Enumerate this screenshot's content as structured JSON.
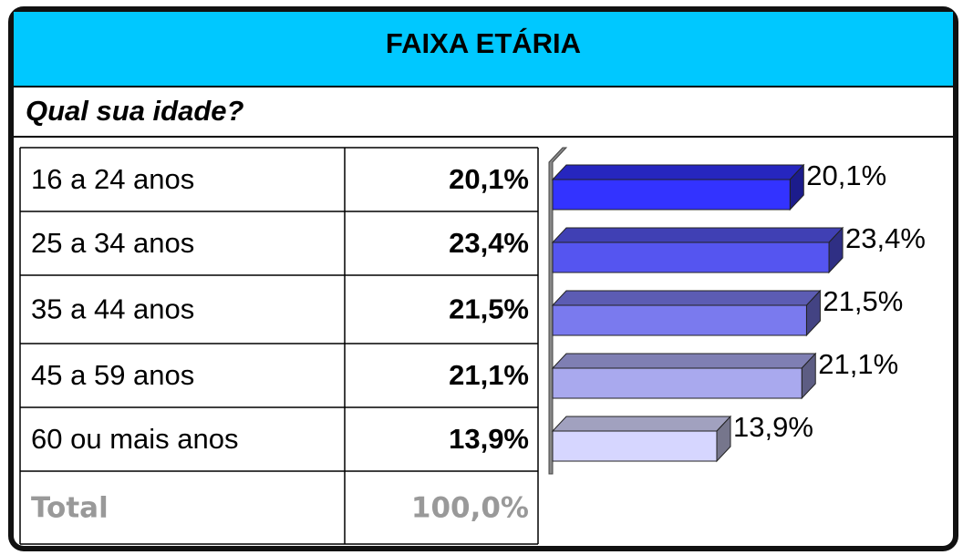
{
  "header": {
    "title": "FAIXA ETÁRIA",
    "question": "Qual sua idade?"
  },
  "table": {
    "rows": [
      [
        "16 a 24 anos",
        "20,1%"
      ],
      [
        "25 a 34 anos",
        "23,4%"
      ],
      [
        "35 a 44 anos",
        "21,5%"
      ],
      [
        "45 a 59 anos",
        "21,1%"
      ],
      [
        "60 ou mais anos",
        "13,9%"
      ]
    ],
    "total": [
      "Total",
      "100,0%"
    ]
  },
  "chart_data": {
    "type": "bar",
    "orientation": "horizontal",
    "values": [
      20.1,
      23.4,
      21.5,
      21.1,
      13.9
    ],
    "value_labels": [
      "20,1%",
      "23,4%",
      "21,5%",
      "21,1%",
      "13,9%"
    ],
    "colors": [
      "#3333ff",
      "#5555f0",
      "#7a7aee",
      "#a9a9ee",
      "#d6d6ff"
    ]
  }
}
